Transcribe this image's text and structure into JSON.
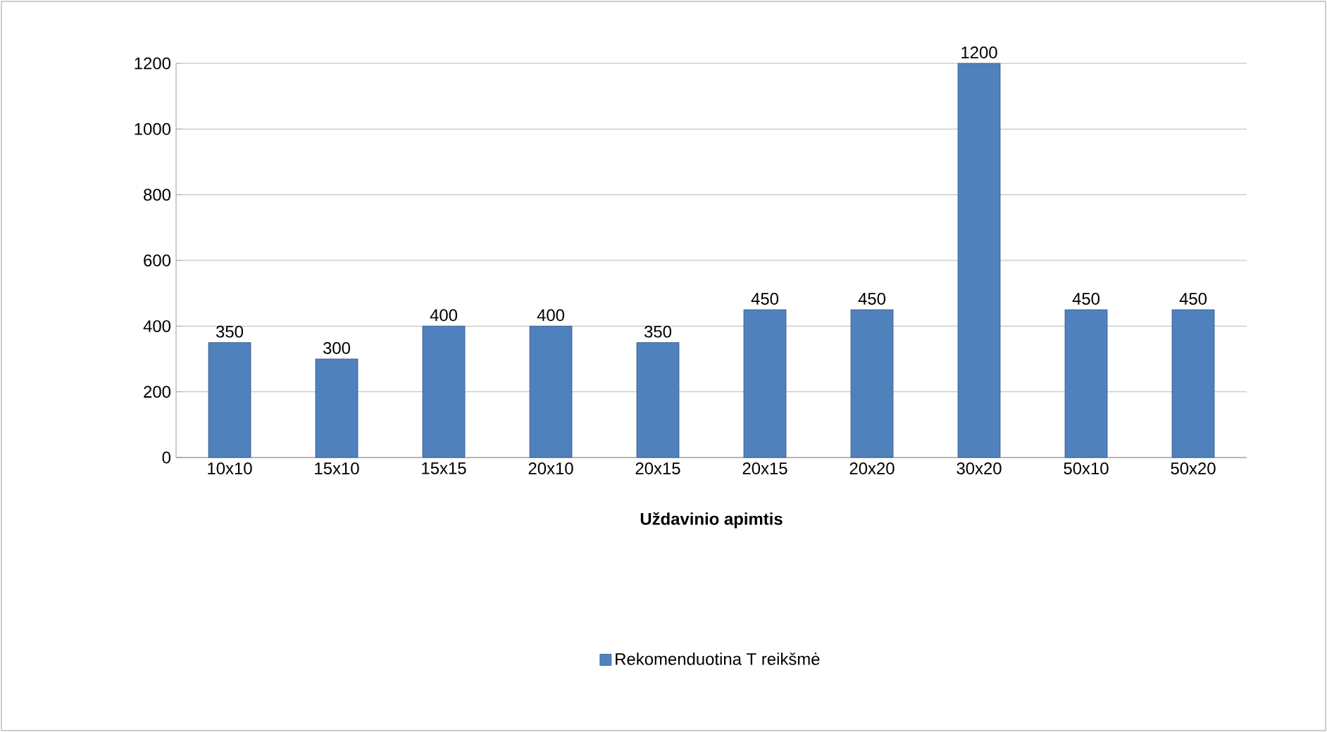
{
  "chart_data": {
    "type": "bar",
    "xlabel": "Uždavinio apimtis",
    "categories": [
      "10x10",
      "15x10",
      "15x15",
      "20x10",
      "20x15",
      "20x15",
      "20x20",
      "30x20",
      "50x10",
      "50x20"
    ],
    "series": [
      {
        "name": "Rekomenduotina T reikšmė",
        "color": "#4f81bd",
        "values": [
          350,
          300,
          400,
          400,
          350,
          450,
          450,
          1200,
          450,
          450
        ]
      }
    ],
    "ylim": [
      0,
      1200
    ],
    "yticks": [
      0,
      200,
      400,
      600,
      800,
      1000,
      1200
    ],
    "grid": "y",
    "legend": "bottom",
    "data_labels": true
  }
}
